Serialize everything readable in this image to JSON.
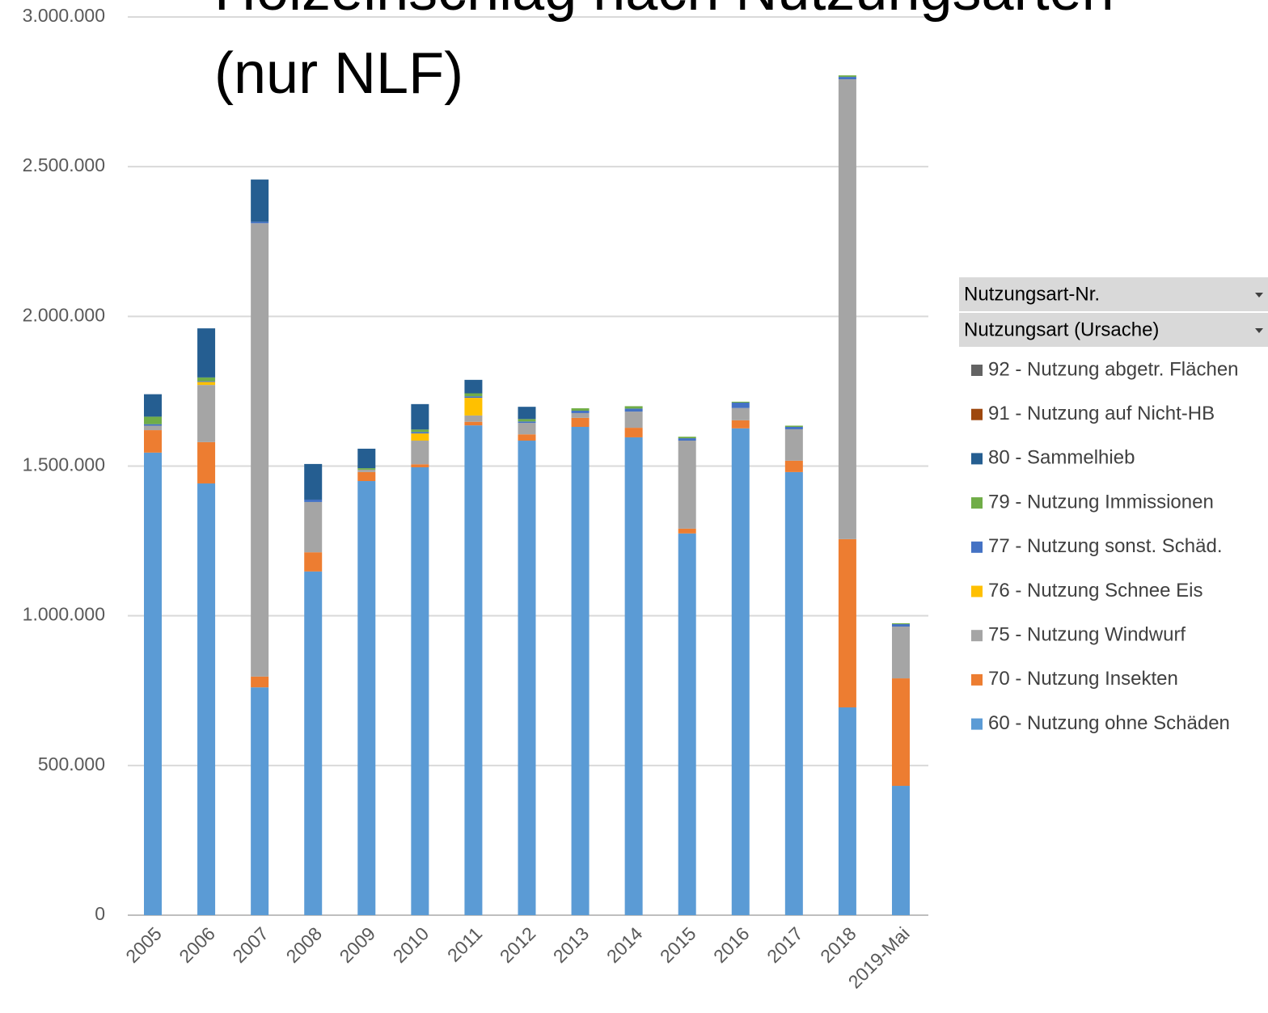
{
  "chart_data": {
    "type": "stacked_bar",
    "title": [
      "Holzeinschlag nach Nutzungsarten",
      "(nur NLF)"
    ],
    "field_buttons": [
      "Nutzungsart-Nr.",
      "Nutzungsart (Ursache)"
    ],
    "categories": [
      "2005",
      "2006",
      "2007",
      "2008",
      "2009",
      "2010",
      "2011",
      "2012",
      "2013",
      "2014",
      "2015",
      "2016",
      "2017",
      "2018",
      "2019-Mai"
    ],
    "series": [
      {
        "name": "60 - Nutzung ohne Schäden",
        "color": "#5b9bd5",
        "values": [
          1545000,
          1442000,
          761000,
          1148000,
          1450000,
          1496000,
          1636000,
          1585000,
          1631000,
          1596000,
          1275000,
          1626000,
          1480000,
          694000,
          432000
        ]
      },
      {
        "name": "70 - Nutzung Insekten",
        "color": "#ed7d31",
        "values": [
          75000,
          138000,
          36000,
          64000,
          30000,
          10000,
          12000,
          21000,
          30000,
          32000,
          16000,
          27000,
          38000,
          562000,
          359000
        ]
      },
      {
        "name": "75 - Nutzung Windwurf",
        "color": "#a5a5a5",
        "values": [
          15000,
          191000,
          1514000,
          168000,
          8000,
          79000,
          21000,
          38000,
          16000,
          54000,
          294000,
          41000,
          105000,
          1536000,
          173000
        ]
      },
      {
        "name": "76 - Nutzung Schnee Eis",
        "color": "#ffc000",
        "values": [
          0,
          10000,
          0,
          0,
          0,
          24000,
          59000,
          0,
          0,
          0,
          0,
          0,
          0,
          0,
          0
        ]
      },
      {
        "name": "77 - Nutzung sonst. Schäd.",
        "color": "#4472c4",
        "values": [
          5000,
          3000,
          5000,
          8000,
          0,
          5000,
          5000,
          5000,
          8000,
          10000,
          8000,
          18000,
          8000,
          8000,
          8000
        ]
      },
      {
        "name": "79 - Nutzung Immissionen",
        "color": "#70ad47",
        "values": [
          25000,
          12000,
          0,
          0,
          5000,
          8000,
          10000,
          8000,
          8000,
          8000,
          5000,
          3000,
          4000,
          5000,
          3000
        ]
      },
      {
        "name": "80 - Sammelhieb",
        "color": "#255e91",
        "values": [
          75000,
          164000,
          141000,
          119000,
          65000,
          85000,
          45000,
          41000,
          0,
          0,
          0,
          0,
          0,
          0,
          0
        ]
      },
      {
        "name": "91 - Nutzung auf Nicht-HB",
        "color": "#9e480e",
        "values": [
          0,
          0,
          0,
          0,
          0,
          0,
          0,
          0,
          0,
          0,
          0,
          0,
          0,
          0,
          0
        ]
      },
      {
        "name": "92 - Nutzung abgetr. Flächen",
        "color": "#636363",
        "values": [
          0,
          0,
          0,
          0,
          0,
          0,
          0,
          0,
          0,
          0,
          0,
          0,
          0,
          0,
          0
        ]
      }
    ],
    "ylim": [
      0,
      3000000
    ],
    "yticks": [
      0,
      {
        "value": 500000,
        "label": "500.000"
      },
      {
        "value": 1000000,
        "label": "1.000.000"
      },
      {
        "value": 1500000,
        "label": "1.500.000"
      },
      {
        "value": 2000000,
        "label": "2.000.000"
      },
      {
        "value": 2500000,
        "label": "2.500.000"
      },
      {
        "value": 3000000,
        "label": "3.000.000"
      }
    ],
    "grid": true
  }
}
